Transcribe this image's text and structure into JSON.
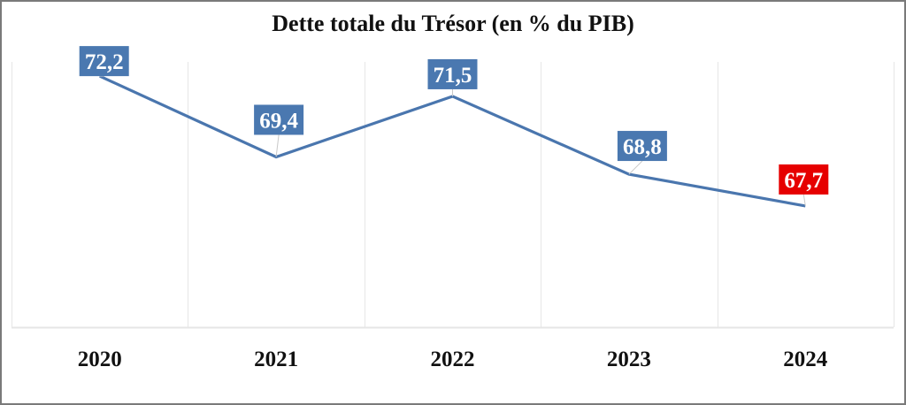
{
  "chart_data": {
    "type": "line",
    "title": "Dette totale du Trésor (en % du PIB)",
    "xlabel": "",
    "ylabel": "",
    "categories": [
      "2020",
      "2021",
      "2022",
      "2023",
      "2024"
    ],
    "series": [
      {
        "name": "Dette totale du Trésor (en % du PIB)",
        "values": [
          72.2,
          69.4,
          71.5,
          68.8,
          67.7
        ],
        "labels": [
          "72,2",
          "69,4",
          "71,5",
          "68,8",
          "67,7"
        ],
        "color": "#4a76ae"
      }
    ],
    "ylim": [
      63.5,
      73.0
    ],
    "grid": {
      "vertical": true,
      "horizontal": false
    },
    "legend": "none",
    "highlight": {
      "index": 4,
      "label_color": "#e60000"
    },
    "colors": {
      "line": "#4a76ae",
      "label_box": "#4a78b0",
      "label_box_highlight": "#e60000",
      "label_text": "#ffffff",
      "gridline": "#e6e6e6",
      "border": "#7a7a7a"
    }
  }
}
